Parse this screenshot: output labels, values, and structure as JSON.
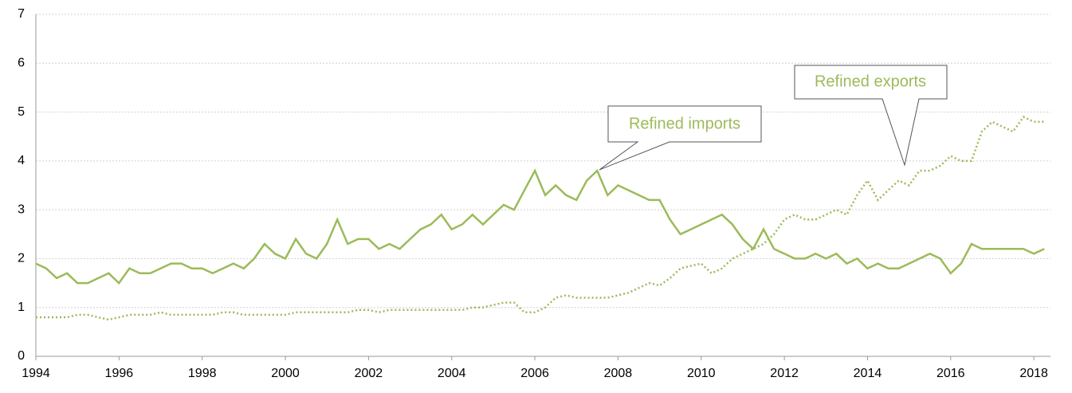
{
  "chart_data": {
    "type": "line",
    "x": [
      1994,
      1994.25,
      1994.5,
      1994.75,
      1995,
      1995.25,
      1995.5,
      1995.75,
      1996,
      1996.25,
      1996.5,
      1996.75,
      1997,
      1997.25,
      1997.5,
      1997.75,
      1998,
      1998.25,
      1998.5,
      1998.75,
      1999,
      1999.25,
      1999.5,
      1999.75,
      2000,
      2000.25,
      2000.5,
      2000.75,
      2001,
      2001.25,
      2001.5,
      2001.75,
      2002,
      2002.25,
      2002.5,
      2002.75,
      2003,
      2003.25,
      2003.5,
      2003.75,
      2004,
      2004.25,
      2004.5,
      2004.75,
      2005,
      2005.25,
      2005.5,
      2005.75,
      2006,
      2006.25,
      2006.5,
      2006.75,
      2007,
      2007.25,
      2007.5,
      2007.75,
      2008,
      2008.25,
      2008.5,
      2008.75,
      2009,
      2009.25,
      2009.5,
      2009.75,
      2010,
      2010.25,
      2010.5,
      2010.75,
      2011,
      2011.25,
      2011.5,
      2011.75,
      2012,
      2012.25,
      2012.5,
      2012.75,
      2013,
      2013.25,
      2013.5,
      2013.75,
      2014,
      2014.25,
      2014.5,
      2014.75,
      2015,
      2015.25,
      2015.5,
      2015.75,
      2016,
      2016.25,
      2016.5,
      2016.75,
      2017,
      2017.25,
      2017.5,
      2017.75,
      2018,
      2018.25
    ],
    "series": [
      {
        "name": "Refined imports",
        "color": "#9bbb59",
        "style": "solid",
        "values": [
          1.9,
          1.8,
          1.6,
          1.7,
          1.5,
          1.5,
          1.6,
          1.7,
          1.5,
          1.8,
          1.7,
          1.7,
          1.8,
          1.9,
          1.9,
          1.8,
          1.8,
          1.7,
          1.8,
          1.9,
          1.8,
          2.0,
          2.3,
          2.1,
          2.0,
          2.4,
          2.1,
          2.0,
          2.3,
          2.8,
          2.3,
          2.4,
          2.4,
          2.2,
          2.3,
          2.2,
          2.4,
          2.6,
          2.7,
          2.9,
          2.6,
          2.7,
          2.9,
          2.7,
          2.9,
          3.1,
          3.0,
          3.4,
          3.8,
          3.3,
          3.5,
          3.3,
          3.2,
          3.6,
          3.8,
          3.3,
          3.5,
          3.4,
          3.3,
          3.2,
          3.2,
          2.8,
          2.5,
          2.6,
          2.7,
          2.8,
          2.9,
          2.7,
          2.4,
          2.2,
          2.6,
          2.2,
          2.1,
          2.0,
          2.0,
          2.1,
          2.0,
          2.1,
          1.9,
          2.0,
          1.8,
          1.9,
          1.8,
          1.8,
          1.9,
          2.0,
          2.1,
          2.0,
          1.7,
          1.9,
          2.3,
          2.2,
          2.2,
          2.2,
          2.2,
          2.2,
          2.1,
          2.2
        ]
      },
      {
        "name": "Refined exports",
        "color": "#9bbb59",
        "style": "dotted",
        "values": [
          0.8,
          0.8,
          0.8,
          0.8,
          0.85,
          0.85,
          0.8,
          0.75,
          0.8,
          0.85,
          0.85,
          0.85,
          0.9,
          0.85,
          0.85,
          0.85,
          0.85,
          0.85,
          0.9,
          0.9,
          0.85,
          0.85,
          0.85,
          0.85,
          0.85,
          0.9,
          0.9,
          0.9,
          0.9,
          0.9,
          0.9,
          0.95,
          0.95,
          0.9,
          0.95,
          0.95,
          0.95,
          0.95,
          0.95,
          0.95,
          0.95,
          0.95,
          1.0,
          1.0,
          1.05,
          1.1,
          1.1,
          0.9,
          0.9,
          1.0,
          1.2,
          1.25,
          1.2,
          1.2,
          1.2,
          1.2,
          1.25,
          1.3,
          1.4,
          1.5,
          1.45,
          1.6,
          1.8,
          1.85,
          1.9,
          1.7,
          1.8,
          2.0,
          2.1,
          2.2,
          2.3,
          2.5,
          2.8,
          2.9,
          2.8,
          2.8,
          2.9,
          3.0,
          2.9,
          3.3,
          3.6,
          3.2,
          3.4,
          3.6,
          3.5,
          3.8,
          3.8,
          3.9,
          4.1,
          4.0,
          4.0,
          4.6,
          4.8,
          4.7,
          4.6,
          4.9,
          4.8,
          4.8
        ]
      }
    ],
    "xlim": [
      1994,
      2018.4
    ],
    "xticks": [
      1994,
      1996,
      1998,
      2000,
      2002,
      2004,
      2006,
      2008,
      2010,
      2012,
      2014,
      2016,
      2018
    ],
    "ylim": [
      0,
      7
    ],
    "yticks": [
      0,
      1,
      2,
      3,
      4,
      5,
      6,
      7
    ],
    "grid": true
  }
}
